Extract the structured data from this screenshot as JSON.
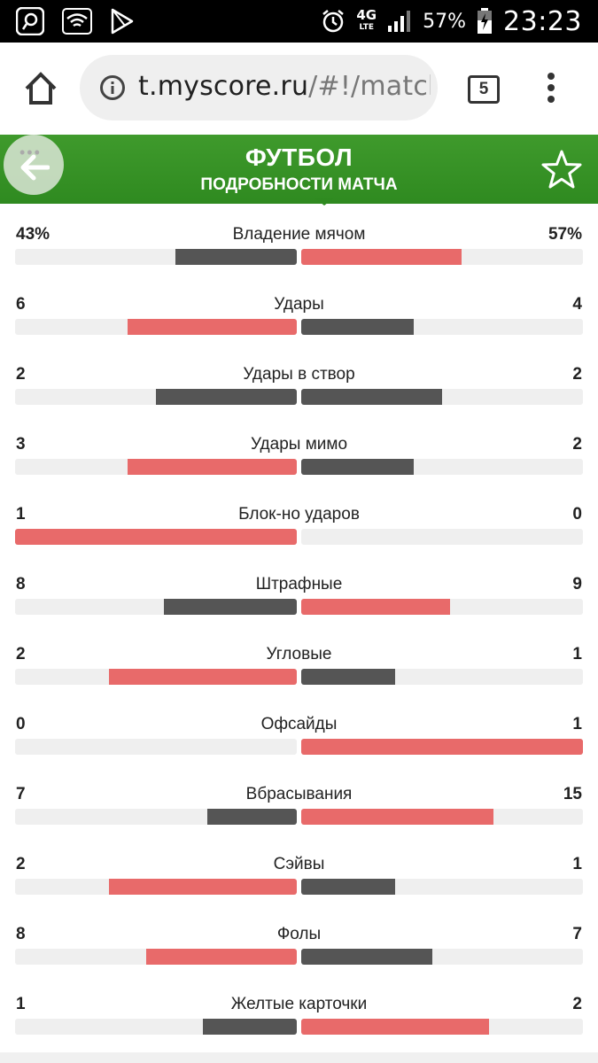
{
  "status_bar": {
    "icons_left": [
      "search-icon",
      "wifi-icon",
      "play-store-icon"
    ],
    "network_label": "4G",
    "network_sub": "LTE",
    "battery_percent": "57%",
    "time": "23:23"
  },
  "browser": {
    "url_host": "t.myscore.ru",
    "url_path": "/#!/match/",
    "tab_count": "5"
  },
  "header": {
    "title": "ФУТБОЛ",
    "subtitle": "ПОДРОБНОСТИ МАТЧА"
  },
  "colors": {
    "header_green": "#3a9628",
    "bar_dark": "#555555",
    "bar_red": "#e86a6a",
    "track": "#efefef"
  },
  "stats": [
    {
      "name": "Владение мячом",
      "home": "43%",
      "away": "57%",
      "home_value": 43,
      "away_value": 57
    },
    {
      "name": "Удары",
      "home": "6",
      "away": "4",
      "home_value": 6,
      "away_value": 4
    },
    {
      "name": "Удары в створ",
      "home": "2",
      "away": "2",
      "home_value": 2,
      "away_value": 2
    },
    {
      "name": "Удары мимо",
      "home": "3",
      "away": "2",
      "home_value": 3,
      "away_value": 2
    },
    {
      "name": "Блок-но ударов",
      "home": "1",
      "away": "0",
      "home_value": 1,
      "away_value": 0
    },
    {
      "name": "Штрафные",
      "home": "8",
      "away": "9",
      "home_value": 8,
      "away_value": 9
    },
    {
      "name": "Угловые",
      "home": "2",
      "away": "1",
      "home_value": 2,
      "away_value": 1
    },
    {
      "name": "Офсайды",
      "home": "0",
      "away": "1",
      "home_value": 0,
      "away_value": 1
    },
    {
      "name": "Вбрасывания",
      "home": "7",
      "away": "15",
      "home_value": 7,
      "away_value": 15
    },
    {
      "name": "Сэйвы",
      "home": "2",
      "away": "1",
      "home_value": 2,
      "away_value": 1
    },
    {
      "name": "Фолы",
      "home": "8",
      "away": "7",
      "home_value": 8,
      "away_value": 7
    },
    {
      "name": "Желтые карточки",
      "home": "1",
      "away": "2",
      "home_value": 1,
      "away_value": 2
    }
  ]
}
